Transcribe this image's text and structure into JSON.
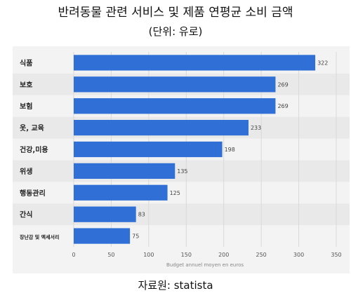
{
  "header": {
    "title": "반려동물 관련 서비스 및 제품 연평균 소비 금액",
    "subtitle": "(단위: 유로)"
  },
  "source": "자료원: statista",
  "chart_data": {
    "type": "bar",
    "orientation": "horizontal",
    "categories": [
      "식품",
      "보호",
      "보험",
      "옷, 교육",
      "건강,미용",
      "위생",
      "행동관리",
      "간식",
      "장난감 및 액세서리"
    ],
    "values": [
      322,
      269,
      269,
      233,
      198,
      135,
      125,
      83,
      75
    ],
    "xlabel": "Budget annuel moyen en euros",
    "xlim": [
      0,
      350
    ],
    "xticks": [
      0,
      50,
      100,
      150,
      200,
      250,
      300,
      350
    ],
    "bar_color": "#2f6fd6",
    "grid": true
  }
}
